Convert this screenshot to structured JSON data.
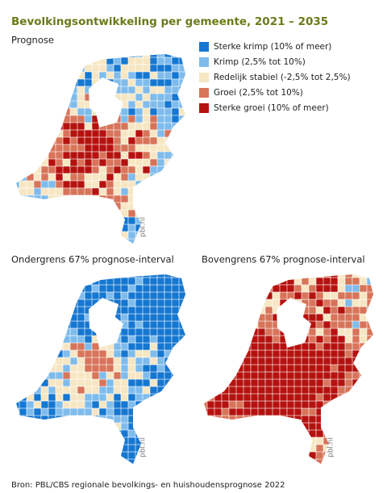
{
  "title": "Bevolkingsontwikkeling per gemeente, 2021 – 2035",
  "maps": [
    {
      "title": "Prognose",
      "credit": "pbl.nl"
    },
    {
      "title": "Ondergrens 67% prognose-interval",
      "credit": "pbl.nl"
    },
    {
      "title": "Bovengrens 67% prognose-interval",
      "credit": "pbl.nl"
    }
  ],
  "legend": [
    {
      "label": "Sterke krimp (10% of meer)",
      "color": "#1577d1"
    },
    {
      "label": "Krimp (2,5% tot 10%)",
      "color": "#7fbcec"
    },
    {
      "label": "Redelijk stabiel (-2,5% tot 2,5%)",
      "color": "#f6e6c3"
    },
    {
      "label": "Groei (2,5% tot 10%)",
      "color": "#d8745a"
    },
    {
      "label": "Sterke groei (10% of meer)",
      "color": "#b5120f"
    }
  ],
  "source": "Bron: PBL/CBS regionale bevolkings- en huishoudensprognose 2022"
}
